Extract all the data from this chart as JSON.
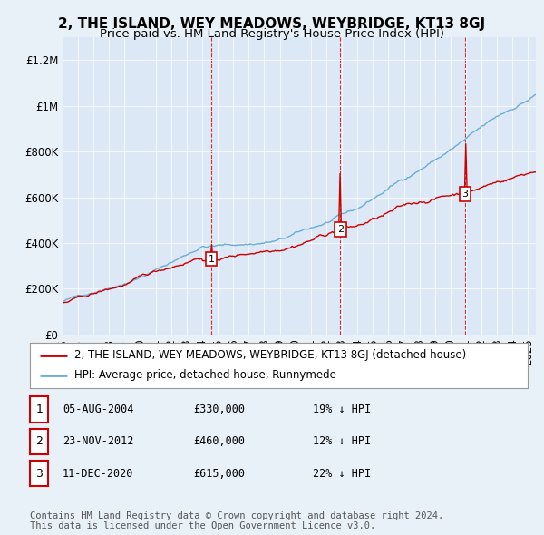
{
  "title": "2, THE ISLAND, WEY MEADOWS, WEYBRIDGE, KT13 8GJ",
  "subtitle": "Price paid vs. HM Land Registry's House Price Index (HPI)",
  "ylabel_ticks": [
    "£0",
    "£200K",
    "£400K",
    "£600K",
    "£800K",
    "£1M",
    "£1.2M"
  ],
  "ytick_values": [
    0,
    200000,
    400000,
    600000,
    800000,
    1000000,
    1200000
  ],
  "ylim": [
    0,
    1300000
  ],
  "xlim_start": 1995.0,
  "xlim_end": 2025.5,
  "sale_dates": [
    2004.59,
    2012.9,
    2020.95
  ],
  "sale_prices": [
    330000,
    460000,
    615000
  ],
  "sale_labels": [
    "1",
    "2",
    "3"
  ],
  "sale_date_strs": [
    "05-AUG-2004",
    "23-NOV-2012",
    "11-DEC-2020"
  ],
  "sale_price_strs": [
    "£330,000",
    "£460,000",
    "£615,000"
  ],
  "sale_pct_strs": [
    "19% ↓ HPI",
    "12% ↓ HPI",
    "22% ↓ HPI"
  ],
  "hpi_color": "#6baed6",
  "price_color": "#cc0000",
  "vline_color": "#cc0000",
  "background_color": "#e8f0f8",
  "plot_bg_color": "#dce8f5",
  "legend_label_red": "2, THE ISLAND, WEY MEADOWS, WEYBRIDGE, KT13 8GJ (detached house)",
  "legend_label_blue": "HPI: Average price, detached house, Runnymede",
  "footer": "Contains HM Land Registry data © Crown copyright and database right 2024.\nThis data is licensed under the Open Government Licence v3.0.",
  "title_fontsize": 11,
  "subtitle_fontsize": 9.5,
  "tick_fontsize": 8.5,
  "legend_fontsize": 8.5,
  "table_fontsize": 8.5,
  "footer_fontsize": 7.5
}
